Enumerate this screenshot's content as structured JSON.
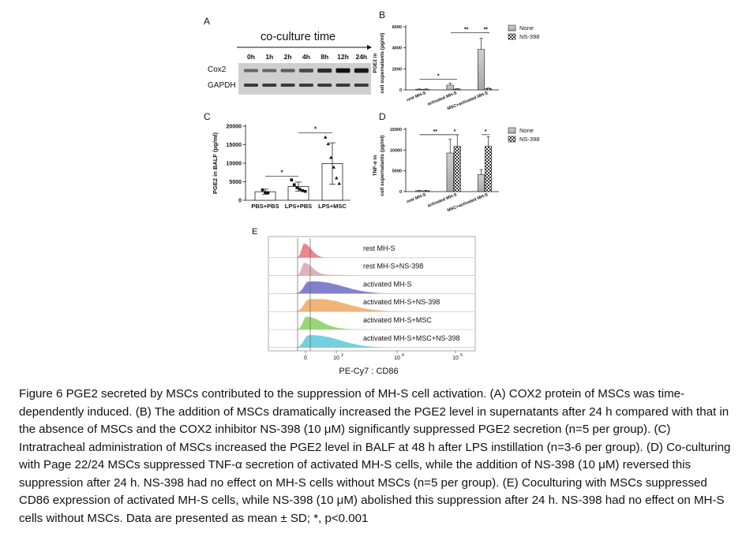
{
  "panels": {
    "A": {
      "letter": "A",
      "header": "co-culture time",
      "times": [
        "0h",
        "1h",
        "2h",
        "4h",
        "8h",
        "12h",
        "24h"
      ],
      "bands": [
        "Cox2",
        "GAPDH"
      ],
      "cox2_intensity": [
        0.35,
        0.35,
        0.4,
        0.55,
        0.75,
        0.95,
        0.9
      ]
    },
    "B": {
      "letter": "B",
      "ylabel_line1": "PGE2 in",
      "ylabel_line2": "cell supernatants (pg/ml)",
      "yticks": [
        "0",
        "2000",
        "4000",
        "6000"
      ],
      "ylim": [
        0,
        6000
      ],
      "groups": [
        "rest MH-S",
        "activated MH-S",
        "MSC+activated MH-S"
      ],
      "legend": [
        "None",
        "NS-398"
      ],
      "values": [
        [
          60,
          60
        ],
        [
          450,
          80
        ],
        [
          3850,
          120
        ]
      ],
      "errors": [
        [
          30,
          30
        ],
        [
          180,
          40
        ],
        [
          1050,
          60
        ]
      ],
      "sig": [
        "*",
        "**",
        "**"
      ]
    },
    "C": {
      "letter": "C",
      "ylabel": "PGE2 in BALF (pg/ml)",
      "yticks": [
        "0",
        "5000",
        "10000",
        "15000",
        "20000"
      ],
      "ylim": [
        0,
        20000
      ],
      "groups": [
        "PBS+PBS",
        "LPS+PBS",
        "LPS+MSC"
      ],
      "values": [
        2300,
        3700,
        9900
      ],
      "errors": [
        700,
        1200,
        5600
      ],
      "points": [
        [
          2800,
          2100,
          2000
        ],
        [
          5500,
          4200,
          3400,
          3000,
          2600,
          2400
        ],
        [
          17000,
          15200,
          11500,
          8900,
          6000,
          4500
        ]
      ],
      "sig": [
        "*",
        "*"
      ]
    },
    "D": {
      "letter": "D",
      "ylabel_line1": "TNF-α in",
      "ylabel_line2": "cell supernatants (pg/ml)",
      "yticks": [
        "0",
        "5000",
        "10000",
        "15000"
      ],
      "ylim": [
        0,
        15000
      ],
      "groups": [
        "rest MH-S",
        "activated MH-S",
        "MSC+activated MH-S"
      ],
      "legend": [
        "None",
        "NS-398"
      ],
      "values": [
        [
          200,
          200
        ],
        [
          9300,
          10900
        ],
        [
          4100,
          10900
        ]
      ],
      "errors": [
        [
          100,
          100
        ],
        [
          3300,
          2800
        ],
        [
          1200,
          2300
        ]
      ],
      "sig": [
        "**",
        "*",
        "*"
      ]
    },
    "E": {
      "letter": "E",
      "rows": [
        "rest MH-S",
        "rest MH-S+NS-398",
        "activated MH-S",
        "activated MH-S+NS-398",
        "activated MH-S+MSC",
        "activated MH-S+MSC+NS-398"
      ],
      "colors": [
        "#e9707a",
        "#d9a4ae",
        "#6d6bc6",
        "#f0a860",
        "#88cf5e",
        "#5cc8d6"
      ],
      "xticks": [
        "0",
        "10",
        "10",
        "10"
      ],
      "xtick_exponents": [
        "",
        "3",
        "4",
        "5"
      ],
      "xlabel": "PE-Cy7 : CD86"
    }
  },
  "caption": "Figure 6 PGE2 secreted by MSCs contributed to the suppression of MH-S cell activation. (A) COX2 protein of MSCs was time-dependently induced. (B) The addition of MSCs dramatically increased the PGE2 level in supernatants after 24 h compared with that in the absence of MSCs and the COX2 inhibitor NS-398 (10 μM) significantly suppressed PGE2 secretion (n=5 per group). (C) Intratracheal administration of MSCs increased the PGE2 level in BALF at 48 h after LPS instillation (n=3-6 per group). (D) Co-culturing with Page 22/24 MSCs suppressed TNF-α secretion of activated MH-S cells, while the addition of NS-398 (10 μM) reversed this suppression after 24 h. NS-398 had no effect on MH-S cells without MSCs (n=5 per group). (E) Coculturing with MSCs suppressed CD86 expression of activated MH-S cells, while NS-398 (10 μM) abolished this suppression after 24 h. NS-398 had no effect on MH-S cells without MSCs. Data are presented as mean ± SD; *, p<0.001"
}
